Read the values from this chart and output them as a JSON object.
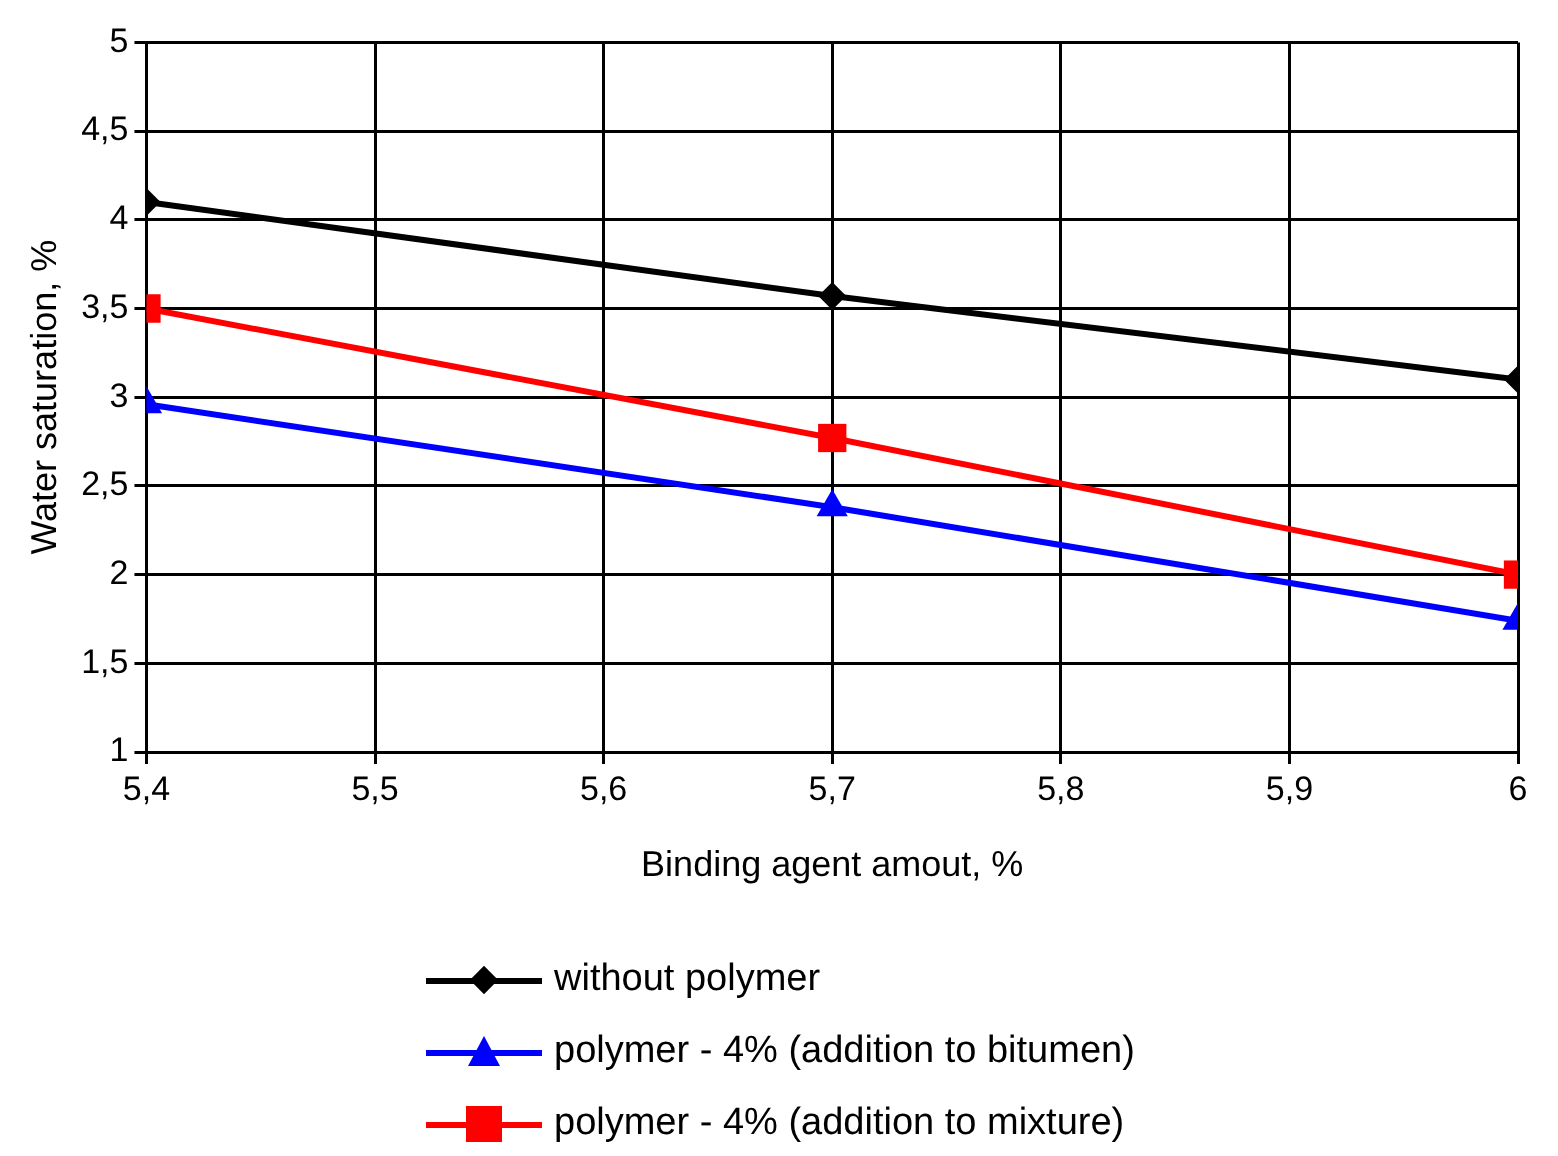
{
  "chart_data": {
    "type": "line",
    "xlabel": "Binding agent amout, %",
    "ylabel": "Water saturation, %",
    "x": [
      5.4,
      5.7,
      6
    ],
    "series": [
      {
        "name": "without polymer",
        "color": "#000000",
        "marker": "diamond",
        "values": [
          4.1,
          3.57,
          3.1
        ]
      },
      {
        "name": "polymer - 4% (addition to bitumen)",
        "color": "#0000ff",
        "marker": "triangle",
        "values": [
          2.96,
          2.38,
          1.74
        ]
      },
      {
        "name": "polymer - 4% (addition to mixture)",
        "color": "#ff0000",
        "marker": "square",
        "values": [
          3.5,
          2.77,
          2.0
        ]
      }
    ],
    "xlim": [
      5.4,
      6
    ],
    "xticks": [
      {
        "value": 5.4,
        "label": "5,4"
      },
      {
        "value": 5.5,
        "label": "5,5"
      },
      {
        "value": 5.6,
        "label": "5,6"
      },
      {
        "value": 5.7,
        "label": "5,7"
      },
      {
        "value": 5.8,
        "label": "5,8"
      },
      {
        "value": 5.9,
        "label": "5,9"
      },
      {
        "value": 6,
        "label": "6"
      }
    ],
    "ylim": [
      1,
      5
    ],
    "yticks": [
      1,
      {
        "value": 1.5,
        "label": "1,5"
      },
      2,
      {
        "value": 2.5,
        "label": "2,5"
      },
      3,
      {
        "value": 3.5,
        "label": "3,5"
      },
      4,
      {
        "value": 4.5,
        "label": "4,5"
      },
      5
    ],
    "grid": true,
    "legend": "bottom",
    "line_style": "solid"
  }
}
